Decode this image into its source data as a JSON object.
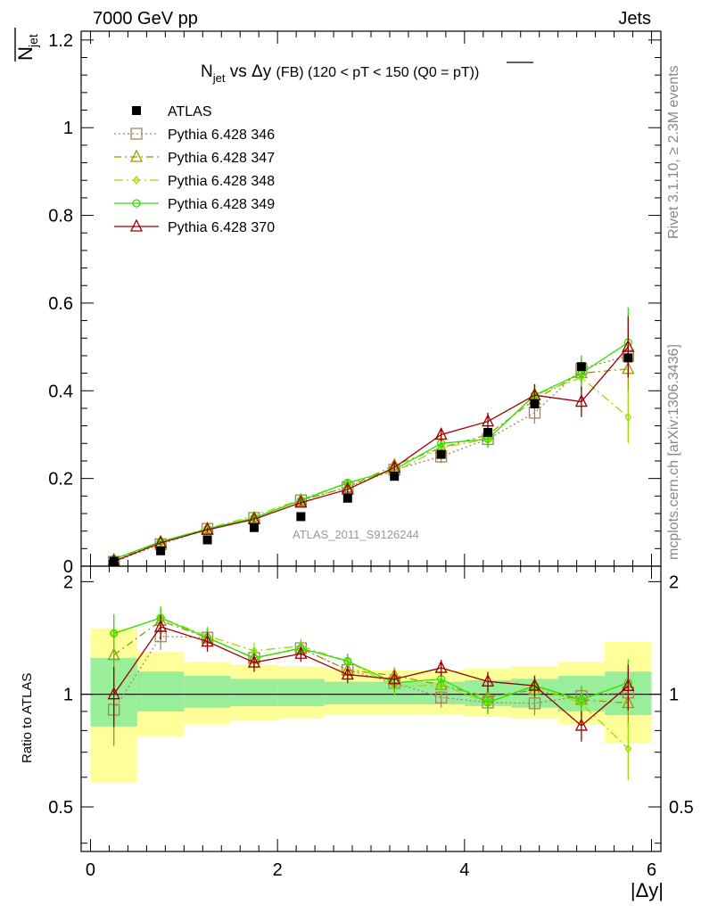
{
  "header": {
    "energy": "7000 GeV pp",
    "process": "Jets"
  },
  "side_labels": {
    "rivet": "Rivet 3.1.10, ≥ 2.3M events",
    "source": "mcplots.cern.ch [arXiv:1306.3436]"
  },
  "watermark": "ATLAS_2011_S9126244",
  "chart_data": {
    "type": "line",
    "title": "N_jet vs Δy (FB) (120 < pT < 150 (Q0 = pT̅))",
    "xlabel": "|Δy|",
    "ylabel": "N_jet (with overline)",
    "ratio_ylabel": "Ratio to ATLAS",
    "xlim": [
      -0.1,
      6.1
    ],
    "ylim": [
      0,
      1.22
    ],
    "ratio_ylim": [
      0.38,
      2.2
    ],
    "ratio_scale": "log",
    "x_ticks": [
      "0",
      "2",
      "4",
      "6"
    ],
    "y_ticks": [
      "0",
      "0.2",
      "0.4",
      "0.6",
      "0.8",
      "1",
      "1.2"
    ],
    "ratio_ticks": [
      "0.5",
      "1",
      "2"
    ],
    "legend_position": "top-left",
    "x": [
      0.25,
      0.75,
      1.25,
      1.75,
      2.25,
      2.75,
      3.25,
      3.75,
      4.25,
      4.75,
      5.25,
      5.75
    ],
    "data": {
      "name": "ATLAS",
      "color": "#000000",
      "values": [
        0.011,
        0.035,
        0.06,
        0.088,
        0.113,
        0.155,
        0.205,
        0.255,
        0.305,
        0.37,
        0.455,
        0.475
      ],
      "band_inner": [
        [
          0.82,
          1.25
        ],
        [
          0.9,
          1.15
        ],
        [
          0.92,
          1.12
        ],
        [
          0.93,
          1.1
        ],
        [
          0.93,
          1.1
        ],
        [
          0.94,
          1.08
        ],
        [
          0.94,
          1.08
        ],
        [
          0.94,
          1.08
        ],
        [
          0.93,
          1.09
        ],
        [
          0.92,
          1.1
        ],
        [
          0.9,
          1.12
        ],
        [
          0.88,
          1.15
        ]
      ],
      "band_outer": [
        [
          0.58,
          1.5
        ],
        [
          0.77,
          1.3
        ],
        [
          0.83,
          1.22
        ],
        [
          0.85,
          1.2
        ],
        [
          0.86,
          1.19
        ],
        [
          0.88,
          1.17
        ],
        [
          0.88,
          1.16
        ],
        [
          0.88,
          1.16
        ],
        [
          0.87,
          1.17
        ],
        [
          0.86,
          1.19
        ],
        [
          0.83,
          1.22
        ],
        [
          0.74,
          1.38
        ]
      ]
    },
    "series": [
      {
        "name": "Pythia 6.428 346",
        "color": "#a0845a",
        "marker": "square",
        "dash": "2,3",
        "values": [
          0.01,
          0.05,
          0.085,
          0.11,
          0.15,
          0.18,
          0.22,
          0.25,
          0.29,
          0.35,
          0.45,
          0.48
        ],
        "errors": [
          0.002,
          0.004,
          0.005,
          0.006,
          0.007,
          0.009,
          0.012,
          0.015,
          0.02,
          0.025,
          0.03,
          0.05
        ]
      },
      {
        "name": "Pythia 6.428 347",
        "color": "#999900",
        "marker": "triangle",
        "dash": "8,4,2,4",
        "values": [
          0.014,
          0.055,
          0.085,
          0.11,
          0.15,
          0.18,
          0.23,
          0.27,
          0.3,
          0.38,
          0.44,
          0.45
        ],
        "errors": [
          0.002,
          0.004,
          0.005,
          0.006,
          0.007,
          0.009,
          0.012,
          0.015,
          0.02,
          0.025,
          0.03,
          0.06
        ]
      },
      {
        "name": "Pythia 6.428 348",
        "color": "#99dd00",
        "marker": "diamond",
        "dash": "10,4,2,4",
        "values": [
          0.016,
          0.056,
          0.086,
          0.115,
          0.152,
          0.19,
          0.215,
          0.27,
          0.29,
          0.39,
          0.43,
          0.34
        ],
        "errors": [
          0.002,
          0.004,
          0.005,
          0.006,
          0.007,
          0.009,
          0.012,
          0.015,
          0.02,
          0.025,
          0.03,
          0.06
        ]
      },
      {
        "name": "Pythia 6.428 349",
        "color": "#33dd00",
        "marker": "circle",
        "dash": "",
        "values": [
          0.016,
          0.056,
          0.085,
          0.11,
          0.15,
          0.19,
          0.22,
          0.28,
          0.29,
          0.39,
          0.44,
          0.51
        ],
        "errors": [
          0.002,
          0.004,
          0.005,
          0.006,
          0.007,
          0.009,
          0.012,
          0.015,
          0.02,
          0.025,
          0.04,
          0.08
        ]
      },
      {
        "name": "Pythia 6.428 370",
        "color": "#990000",
        "marker": "triangle",
        "dash": "",
        "values": [
          0.011,
          0.053,
          0.083,
          0.107,
          0.145,
          0.175,
          0.225,
          0.3,
          0.33,
          0.39,
          0.375,
          0.5
        ],
        "errors": [
          0.002,
          0.004,
          0.005,
          0.006,
          0.007,
          0.009,
          0.012,
          0.015,
          0.02,
          0.025,
          0.035,
          0.07
        ]
      }
    ]
  }
}
